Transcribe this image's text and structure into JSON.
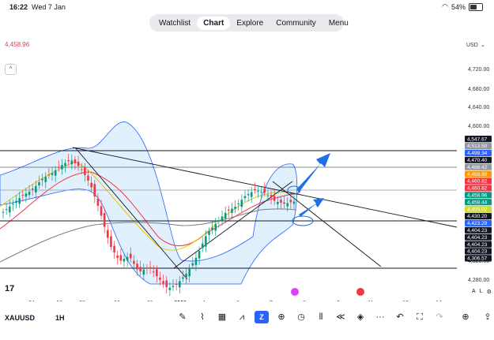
{
  "status": {
    "time": "16:22",
    "date": "Wed 7 Jan",
    "battery": "54%",
    "battery_level": 0.54
  },
  "nav": {
    "items": [
      "Watchlist",
      "Chart",
      "Explore",
      "Community",
      "Menu"
    ],
    "active": "Chart"
  },
  "chart": {
    "top_price_flag": "4,458.96",
    "currency": "USD",
    "price_axis": [
      "4,720.00",
      "4,680.00",
      "4,640.00",
      "4,600.00",
      "4,320.00",
      "4,280.00"
    ],
    "price_tags": [
      {
        "label": "4,547.67",
        "color": "#131722"
      },
      {
        "label": "4,513.50",
        "color": "#9598a1"
      },
      {
        "label": "4,498.34",
        "color": "#2962ff"
      },
      {
        "label": "4,470.40",
        "color": "#131722"
      },
      {
        "label": "4,468.42",
        "color": "#9598a1"
      },
      {
        "label": "4,468.80",
        "color": "#ff9800"
      },
      {
        "label": "4,460.82",
        "color": "#f23645"
      },
      {
        "label": "4,460.82",
        "color": "#f23645"
      },
      {
        "label": "4,458.96",
        "color": "#089981"
      },
      {
        "label": "4,458.44",
        "color": "#089981"
      },
      {
        "label": "4,455.02",
        "color": "#cddc39"
      },
      {
        "label": "4,430.20",
        "color": "#131722"
      },
      {
        "label": "4,423.29",
        "color": "#2962ff"
      },
      {
        "label": "4,404.23",
        "color": "#131722"
      },
      {
        "label": "4,404.23",
        "color": "#131722"
      },
      {
        "label": "4,404.23",
        "color": "#131722"
      },
      {
        "label": "4,404.23",
        "color": "#131722"
      },
      {
        "label": "4,306.57",
        "color": "#131722"
      }
    ],
    "time_axis": [
      "24",
      "26",
      "28",
      "30",
      "31",
      "2026",
      "4",
      "6",
      "7",
      "8",
      "9",
      "11",
      "13",
      "14"
    ],
    "axis_mode": {
      "auto": "A",
      "log": "L"
    }
  },
  "chart_data": {
    "type": "candlestick",
    "symbol": "XAUUSD",
    "interval": "1H",
    "xlabel": "",
    "ylabel": "",
    "ylim": [
      4280,
      4740
    ],
    "horizontal_levels": [
      4547.67,
      4513.5,
      4470.4,
      4430.2,
      4404.23,
      4306.57
    ],
    "close_path": [
      4440,
      4455,
      4470,
      4480,
      4500,
      4510,
      4525,
      4535,
      4520,
      4490,
      4440,
      4380,
      4350,
      4360,
      4330,
      4340,
      4320,
      4300,
      4310,
      4330,
      4360,
      4400,
      4420,
      4440,
      4450,
      4470,
      4480,
      4475,
      4460,
      4455,
      4458.96
    ]
  },
  "bottom": {
    "symbol": "XAUUSD",
    "interval": "1H"
  },
  "toolbar": [
    "pen-icon",
    "indicators-icon",
    "templates-icon",
    "compare-icon",
    "alert-icon",
    "plus-icon",
    "clock-icon",
    "replay-icon",
    "back-icon",
    "layers-icon",
    "more-icon",
    "undo-icon",
    "fullscreen-icon",
    "redo-icon",
    "add-icon",
    "share-icon"
  ]
}
